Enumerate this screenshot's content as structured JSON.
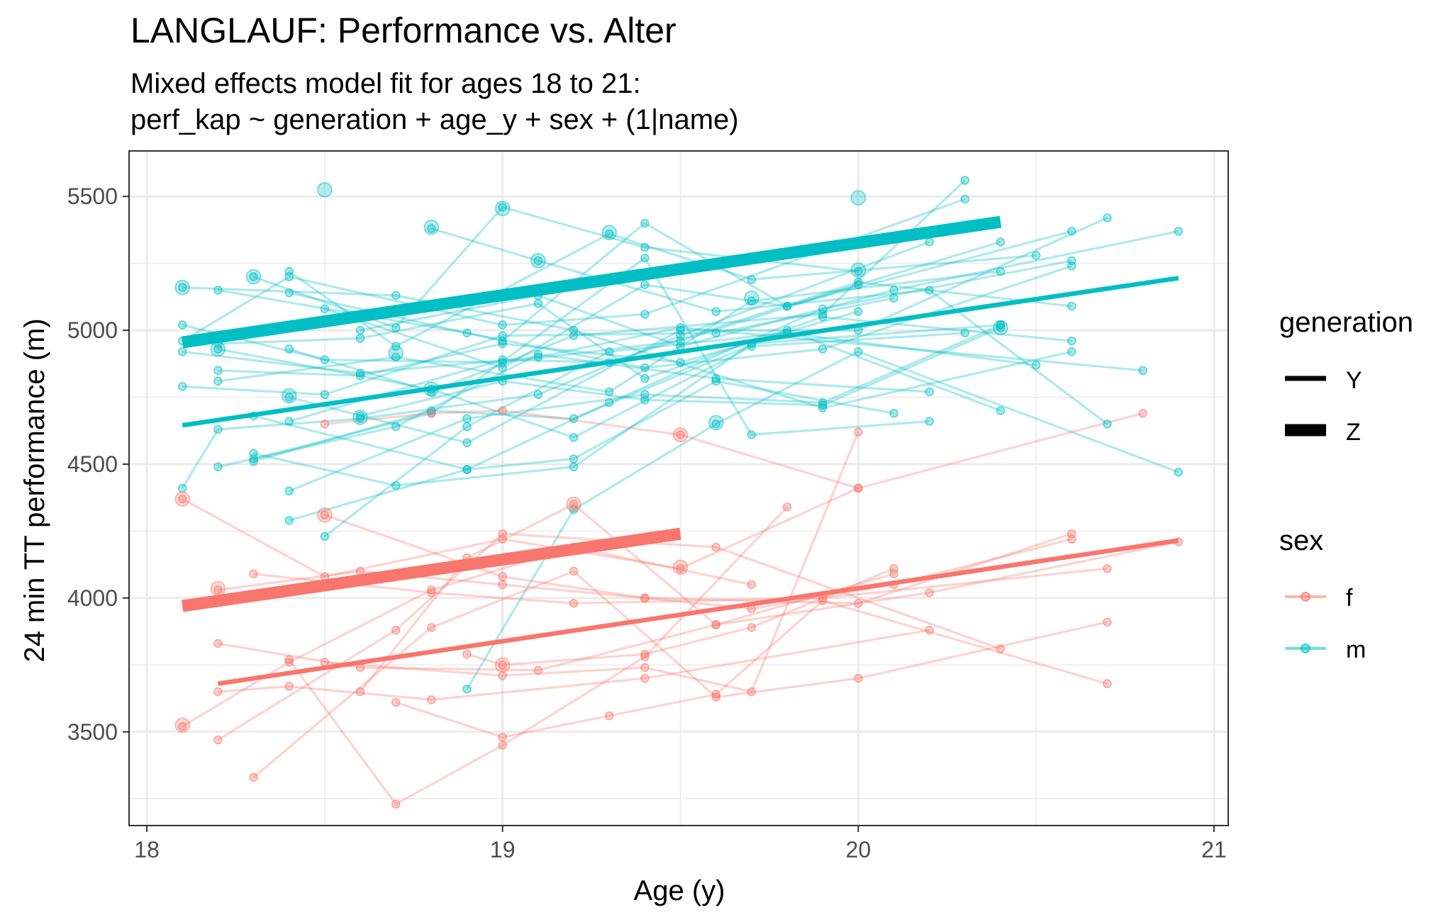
{
  "chart_data": {
    "type": "line",
    "title": "LANGLAUF: Performance vs. Alter",
    "subtitle_lines": [
      "Mixed effects model fit for ages 18 to 21:",
      "perf_kap ~ generation +  age_y  + sex +   (1|name)"
    ],
    "xlabel": "Age (y)",
    "ylabel": "24 min TT performance (m)",
    "xlim": [
      17.95,
      21.04
    ],
    "ylim": [
      3150,
      5670
    ],
    "x_ticks": [
      18,
      19,
      20,
      21
    ],
    "x_tick_labels": [
      "18",
      "19",
      "20",
      "21"
    ],
    "y_ticks": [
      3500,
      4000,
      4500,
      5000,
      5500
    ],
    "y_tick_labels": [
      "3500",
      "4000",
      "4500",
      "5000",
      "5500"
    ],
    "grid": true,
    "colors": {
      "f": "#F8766D",
      "m": "#00BFC4"
    },
    "legend": {
      "placement": "right",
      "generation": {
        "title": "generation",
        "entries": [
          "Y",
          "Z"
        ]
      },
      "sex": {
        "title": "sex",
        "entries": [
          "f",
          "m"
        ]
      }
    },
    "fit_lines": [
      {
        "sex": "m",
        "generation": "Z",
        "x": [
          18.1,
          20.4
        ],
        "y": [
          4955,
          5405
        ]
      },
      {
        "sex": "m",
        "generation": "Y",
        "x": [
          18.1,
          20.9
        ],
        "y": [
          4645,
          5195
        ]
      },
      {
        "sex": "f",
        "generation": "Z",
        "x": [
          18.1,
          19.5
        ],
        "y": [
          3970,
          4240
        ]
      },
      {
        "sex": "f",
        "generation": "Y",
        "x": [
          18.2,
          20.9
        ],
        "y": [
          3680,
          4215
        ]
      }
    ],
    "series": [
      {
        "sex": "m",
        "x": [
          18.1,
          18.5,
          19.0,
          19.5,
          20.0
        ],
        "y": [
          5020,
          4890,
          4880,
          4960,
          5170
        ]
      },
      {
        "sex": "m",
        "x": [
          18.1,
          18.4,
          19.0,
          19.4,
          20.3
        ],
        "y": [
          4960,
          5200,
          5020,
          5060,
          5490
        ]
      },
      {
        "sex": "m",
        "x": [
          18.1,
          18.5,
          19.0,
          19.6,
          20.1
        ],
        "y": [
          4790,
          4760,
          4980,
          4990,
          5120
        ]
      },
      {
        "sex": "m",
        "x": [
          18.1,
          18.2,
          18.6,
          19.1,
          19.5,
          20.2
        ],
        "y": [
          4410,
          4630,
          4670,
          4760,
          4980,
          5330
        ]
      },
      {
        "sex": "m",
        "x": [
          18.1,
          18.7,
          19.2,
          19.9,
          20.6
        ],
        "y": [
          5160,
          5130,
          5000,
          4710,
          4920
        ]
      },
      {
        "sex": "m",
        "x": [
          18.2,
          18.9,
          19.4,
          19.9,
          20.6
        ],
        "y": [
          5150,
          4990,
          4860,
          4930,
          5240
        ]
      },
      {
        "sex": "m",
        "x": [
          18.2,
          18.8,
          19.2,
          19.7,
          20.3
        ],
        "y": [
          4930,
          4780,
          4600,
          4940,
          4990
        ]
      },
      {
        "sex": "m",
        "x": [
          18.2,
          18.6,
          19.0,
          19.5,
          20.0
        ],
        "y": [
          4850,
          4830,
          4950,
          4880,
          5070
        ]
      },
      {
        "sex": "m",
        "x": [
          18.2,
          18.7,
          19.1,
          19.6,
          20.2
        ],
        "y": [
          4490,
          4640,
          4910,
          4820,
          4770
        ]
      },
      {
        "sex": "m",
        "x": [
          18.3,
          18.7,
          19.0,
          19.4,
          20.0
        ],
        "y": [
          5200,
          5010,
          5460,
          5310,
          5220
        ]
      },
      {
        "sex": "m",
        "x": [
          18.3,
          18.7,
          19.2,
          19.7,
          20.4
        ],
        "y": [
          4540,
          4420,
          4490,
          4950,
          5020
        ]
      },
      {
        "sex": "m",
        "x": [
          18.3,
          18.8,
          19.2,
          19.8,
          20.4
        ],
        "y": [
          4510,
          4700,
          4670,
          5000,
          4700
        ]
      },
      {
        "sex": "m",
        "x": [
          18.3,
          18.9,
          19.3,
          19.9,
          20.6
        ],
        "y": [
          4680,
          4480,
          4730,
          5080,
          5260
        ]
      },
      {
        "sex": "m",
        "x": [
          18.4,
          18.7,
          19.3,
          19.7,
          20.5
        ],
        "y": [
          5220,
          4940,
          5360,
          5190,
          5280
        ]
      },
      {
        "sex": "m",
        "x": [
          18.4,
          19.0,
          19.4,
          19.8,
          20.4
        ],
        "y": [
          5140,
          4960,
          5400,
          5090,
          5330
        ]
      },
      {
        "sex": "m",
        "x": [
          18.4,
          18.8,
          19.2,
          19.9,
          20.3
        ],
        "y": [
          4930,
          4770,
          4980,
          5060,
          5560
        ]
      },
      {
        "sex": "m",
        "x": [
          18.4,
          18.9,
          19.5,
          20.0,
          20.7
        ],
        "y": [
          4750,
          4580,
          5000,
          5000,
          5420
        ]
      },
      {
        "sex": "m",
        "x": [
          18.4,
          19.0,
          19.3,
          20.0,
          20.6
        ],
        "y": [
          4660,
          4890,
          4880,
          5180,
          5090
        ]
      },
      {
        "sex": "m",
        "x": [
          18.4,
          18.9,
          19.4,
          19.9,
          20.4
        ],
        "y": [
          4400,
          4670,
          4760,
          4730,
          5020
        ]
      },
      {
        "sex": "m",
        "x": [
          18.4,
          18.9,
          19.2,
          19.6,
          20.1
        ],
        "y": [
          4290,
          4480,
          4520,
          4810,
          4690
        ]
      },
      {
        "sex": "m",
        "x": [
          18.5,
          19.0,
          19.4,
          19.8,
          20.6
        ],
        "y": [
          5080,
          4860,
          5170,
          5090,
          5370
        ]
      },
      {
        "sex": "m",
        "x": [
          18.6,
          19.1,
          19.5,
          20.1,
          20.9
        ],
        "y": [
          5000,
          5130,
          4940,
          5150,
          5370
        ]
      },
      {
        "sex": "m",
        "x": [
          18.8,
          19.1,
          19.6,
          20.2,
          20.7
        ],
        "y": [
          5380,
          5260,
          5070,
          5150,
          4650
        ]
      },
      {
        "sex": "m",
        "x": [
          18.6,
          19.0,
          19.4,
          19.9,
          20.4
        ],
        "y": [
          4680,
          4810,
          4740,
          4720,
          5010
        ]
      },
      {
        "sex": "m",
        "x": [
          18.5,
          18.9,
          19.3,
          19.8,
          20.5
        ],
        "y": [
          4230,
          4640,
          4920,
          4990,
          4870
        ]
      },
      {
        "sex": "m",
        "x": [
          18.1,
          18.6,
          19.1,
          19.5,
          20.8
        ],
        "y": [
          4920,
          4840,
          4900,
          5010,
          4850
        ]
      },
      {
        "sex": "m",
        "x": [
          18.3,
          18.8,
          19.4,
          19.7,
          20.2
        ],
        "y": [
          4520,
          4690,
          5270,
          4610,
          4660
        ]
      },
      {
        "sex": "m",
        "x": [
          18.2,
          18.7,
          19.3,
          19.7,
          20.4
        ],
        "y": [
          4810,
          4900,
          4770,
          5110,
          5220
        ]
      },
      {
        "sex": "m",
        "x": [
          18.9,
          19.2,
          19.6,
          20.0,
          20.9
        ],
        "y": [
          3660,
          4330,
          4650,
          4920,
          4470
        ]
      },
      {
        "sex": "m",
        "x": [
          18.2,
          18.6,
          19.1,
          19.4,
          19.9,
          20.6
        ],
        "y": [
          4950,
          4970,
          5100,
          4820,
          5050,
          4960
        ]
      },
      {
        "sex": "f",
        "x": [
          18.1,
          18.4,
          18.8,
          19.2,
          19.7
        ],
        "y": [
          3520,
          3760,
          4030,
          4190,
          4050
        ]
      },
      {
        "sex": "f",
        "x": [
          18.1,
          18.5,
          19.0,
          19.5,
          20.0
        ],
        "y": [
          4370,
          4080,
          4220,
          4110,
          4410
        ]
      },
      {
        "sex": "f",
        "x": [
          18.2,
          18.6,
          19.1,
          19.6,
          20.1
        ],
        "y": [
          3830,
          3740,
          3730,
          3900,
          4090
        ]
      },
      {
        "sex": "f",
        "x": [
          18.2,
          18.4,
          18.8,
          19.4,
          20.2
        ],
        "y": [
          3650,
          3670,
          3620,
          3700,
          3880
        ]
      },
      {
        "sex": "f",
        "x": [
          18.2,
          18.6,
          19.0,
          19.4,
          20.0,
          20.6
        ],
        "y": [
          4030,
          4100,
          4050,
          4000,
          3980,
          4240
        ]
      },
      {
        "sex": "f",
        "x": [
          18.2,
          18.7,
          19.0,
          19.6,
          20.4
        ],
        "y": [
          3470,
          3880,
          4240,
          4190,
          3810
        ]
      },
      {
        "sex": "f",
        "x": [
          18.3,
          18.8,
          19.2,
          19.6,
          20.0,
          20.7
        ],
        "y": [
          3330,
          3890,
          4100,
          3630,
          3700,
          3910
        ]
      },
      {
        "sex": "f",
        "x": [
          18.3,
          18.8,
          19.2,
          19.9,
          20.7
        ],
        "y": [
          4090,
          4020,
          3980,
          4000,
          4110
        ]
      },
      {
        "sex": "f",
        "x": [
          18.4,
          18.7,
          19.0,
          19.4,
          19.8
        ],
        "y": [
          3770,
          3230,
          3450,
          3780,
          4340
        ]
      },
      {
        "sex": "f",
        "x": [
          18.5,
          18.8,
          19.0,
          19.5,
          20.0,
          20.8
        ],
        "y": [
          4650,
          4690,
          4700,
          4610,
          4410,
          4690
        ]
      },
      {
        "sex": "f",
        "x": [
          18.5,
          19.0,
          19.4,
          19.7,
          20.0
        ],
        "y": [
          3760,
          3710,
          3740,
          3650,
          4620
        ]
      },
      {
        "sex": "f",
        "x": [
          18.6,
          18.9,
          19.2,
          19.6,
          20.2,
          20.9
        ],
        "y": [
          3650,
          4150,
          4350,
          3900,
          4020,
          4210
        ]
      },
      {
        "sex": "f",
        "x": [
          18.5,
          19.0,
          19.4,
          19.7,
          20.1,
          20.6
        ],
        "y": [
          4310,
          4080,
          4000,
          3960,
          4050,
          4220
        ]
      },
      {
        "sex": "f",
        "x": [
          18.7,
          19.0,
          19.3,
          19.6,
          19.9,
          20.7
        ],
        "y": [
          3610,
          3480,
          3560,
          3640,
          3990,
          3680
        ]
      },
      {
        "sex": "f",
        "x": [
          18.9,
          19.0,
          19.4,
          19.7,
          20.1
        ],
        "y": [
          3790,
          3750,
          3790,
          3890,
          4110
        ]
      }
    ],
    "points_size_scaled": [
      {
        "sex": "m",
        "x": 18.5,
        "y": 5525
      },
      {
        "sex": "m",
        "x": 18.8,
        "y": 5385
      },
      {
        "sex": "m",
        "x": 19.0,
        "y": 5455
      },
      {
        "sex": "m",
        "x": 19.3,
        "y": 5365
      },
      {
        "sex": "m",
        "x": 20.0,
        "y": 5495
      },
      {
        "sex": "m",
        "x": 19.1,
        "y": 5260
      },
      {
        "sex": "m",
        "x": 18.1,
        "y": 5160
      },
      {
        "sex": "m",
        "x": 18.3,
        "y": 5200
      },
      {
        "sex": "m",
        "x": 18.2,
        "y": 4930
      },
      {
        "sex": "m",
        "x": 18.7,
        "y": 4915
      },
      {
        "sex": "m",
        "x": 18.4,
        "y": 4755
      },
      {
        "sex": "m",
        "x": 18.8,
        "y": 4780
      },
      {
        "sex": "m",
        "x": 18.6,
        "y": 4675
      },
      {
        "sex": "m",
        "x": 19.6,
        "y": 4655
      },
      {
        "sex": "m",
        "x": 19.7,
        "y": 5120
      },
      {
        "sex": "m",
        "x": 20.0,
        "y": 5225
      },
      {
        "sex": "m",
        "x": 20.4,
        "y": 5010
      },
      {
        "sex": "f",
        "x": 18.1,
        "y": 4370
      },
      {
        "sex": "f",
        "x": 18.2,
        "y": 4035
      },
      {
        "sex": "f",
        "x": 18.1,
        "y": 3525
      },
      {
        "sex": "f",
        "x": 18.5,
        "y": 4310
      },
      {
        "sex": "f",
        "x": 19.2,
        "y": 4350
      },
      {
        "sex": "f",
        "x": 19.5,
        "y": 4610
      },
      {
        "sex": "f",
        "x": 19.5,
        "y": 4115
      },
      {
        "sex": "f",
        "x": 19.0,
        "y": 3750
      }
    ]
  }
}
